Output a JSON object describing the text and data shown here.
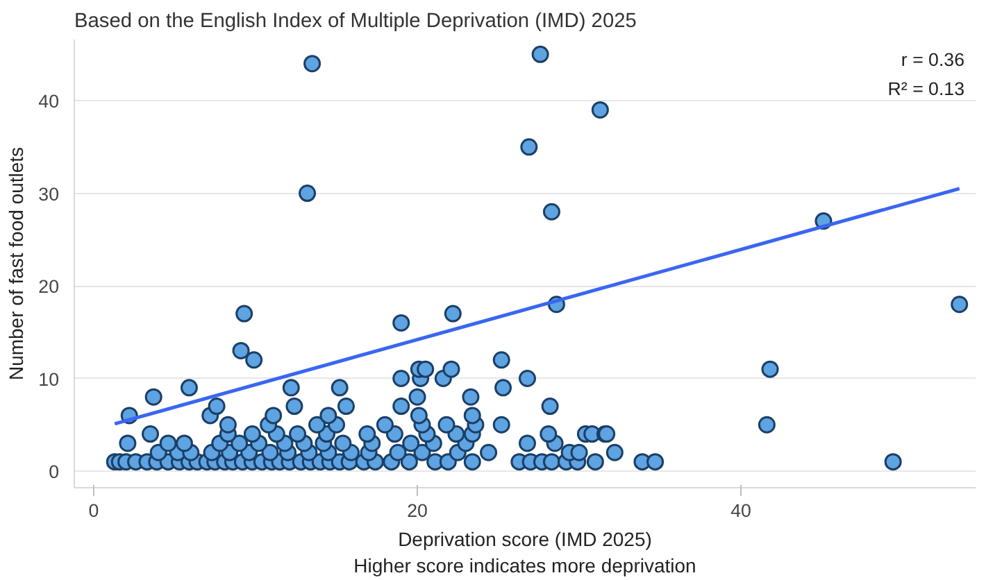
{
  "chart_data": {
    "type": "scatter",
    "subtitle": "Based on the English Index of Multiple Deprivation (IMD) 2025",
    "xlabel": "Deprivation score (IMD 2025)\nHigher score indicates more deprivation",
    "ylabel": "Number of fast food outlets",
    "annotations": [
      "r = 0.36",
      "R² = 0.13"
    ],
    "xlim": [
      -1.2,
      54.5
    ],
    "ylim": [
      -1.8,
      46.6
    ],
    "xticks": [
      0,
      20,
      40
    ],
    "yticks": [
      0,
      10,
      20,
      30,
      40
    ],
    "grid": "y",
    "series": [
      {
        "marker": "circle",
        "color": "#5ea3e2",
        "x": [
          1.3,
          1.6,
          2.0,
          2.6,
          3.3,
          3.9,
          4.6,
          5.3,
          5.9,
          6.4,
          7.0,
          7.5,
          8.1,
          8.6,
          9.2,
          9.8,
          10.4,
          11.0,
          11.5,
          12.1,
          12.8,
          13.4,
          14.0,
          14.6,
          15.2,
          15.8,
          16.7,
          17.4,
          18.4,
          19.5,
          21.1,
          21.9,
          23.4,
          26.3,
          27.0,
          27.7,
          28.3,
          29.2,
          29.9,
          31.0,
          33.9,
          34.7,
          49.4,
          4.0,
          5.2,
          6.0,
          7.3,
          8.4,
          9.6,
          10.9,
          12.0,
          13.3,
          14.5,
          15.9,
          17.0,
          18.8,
          20.3,
          22.5,
          24.4,
          29.4,
          30.0,
          32.2,
          2.1,
          4.6,
          5.6,
          7.8,
          9.0,
          10.2,
          11.8,
          13.0,
          14.2,
          15.4,
          17.2,
          19.6,
          21.0,
          23.0,
          26.8,
          28.5,
          3.5,
          8.3,
          9.8,
          11.3,
          12.6,
          14.4,
          16.9,
          18.6,
          20.6,
          22.4,
          23.4,
          28.1,
          30.4,
          30.8,
          31.6,
          31.7,
          8.3,
          10.8,
          13.8,
          15.0,
          18.0,
          20.3,
          21.8,
          23.6,
          25.2,
          41.6,
          2.2,
          7.2,
          11.1,
          14.5,
          20.1,
          23.4,
          7.6,
          12.4,
          15.6,
          19.0,
          28.2,
          3.7,
          20.0,
          23.3,
          5.9,
          12.2,
          15.2,
          25.3,
          19.0,
          20.2,
          21.6,
          26.8,
          20.1,
          20.5,
          22.1,
          41.8,
          9.9,
          25.2,
          9.1,
          19.0,
          9.3,
          22.2,
          28.6,
          53.5,
          45.1,
          28.3,
          13.2,
          26.9,
          31.3,
          13.5,
          27.6
        ],
        "values": [
          1,
          1,
          1,
          1,
          1,
          1,
          1,
          1,
          1,
          1,
          1,
          1,
          1,
          1,
          1,
          1,
          1,
          1,
          1,
          1,
          1,
          1,
          1,
          1,
          1,
          1,
          1,
          1,
          1,
          1,
          1,
          1,
          1,
          1,
          1,
          1,
          1,
          1,
          1,
          1,
          1,
          1,
          1,
          2,
          2,
          2,
          2,
          2,
          2,
          2,
          2,
          2,
          2,
          2,
          2,
          2,
          2,
          2,
          2,
          2,
          2,
          2,
          3,
          3,
          3,
          3,
          3,
          3,
          3,
          3,
          3,
          3,
          3,
          3,
          3,
          3,
          3,
          3,
          4,
          4,
          4,
          4,
          4,
          4,
          4,
          4,
          4,
          4,
          4,
          4,
          4,
          4,
          4,
          4,
          5,
          5,
          5,
          5,
          5,
          5,
          5,
          5,
          5,
          5,
          6,
          6,
          6,
          6,
          6,
          6,
          7,
          7,
          7,
          7,
          7,
          8,
          8,
          8,
          9,
          9,
          9,
          9,
          10,
          10,
          10,
          10,
          11,
          11,
          11,
          11,
          12,
          12,
          13,
          16,
          17,
          17,
          18,
          18,
          27,
          28,
          30,
          35,
          39,
          44,
          45
        ]
      },
      {
        "type": "line",
        "color": "#3a66f2",
        "x": [
          1.3,
          53.5
        ],
        "values": [
          5.1,
          30.5
        ]
      }
    ]
  }
}
